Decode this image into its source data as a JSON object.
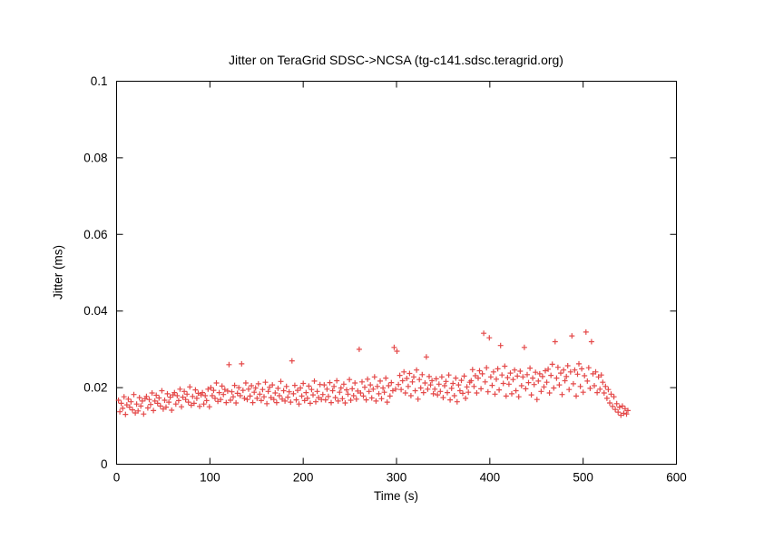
{
  "title": "Jitter on TeraGrid SDSC->NCSA (tg-c141.sdsc.teragrid.org)",
  "colors": {
    "background": "#ffffff",
    "axis": "#000000",
    "text": "#000000",
    "marker": "#e13434"
  },
  "chart_data": {
    "type": "scatter",
    "title": "Jitter on TeraGrid SDSC->NCSA (tg-c141.sdsc.teragrid.org)",
    "xlabel": "Time (s)",
    "ylabel": "Jitter (ms)",
    "xlim": [
      0,
      600
    ],
    "ylim": [
      0,
      0.1
    ],
    "x_ticks": [
      0,
      100,
      200,
      300,
      400,
      500,
      600
    ],
    "x_tick_labels": [
      "0",
      "100",
      "200",
      "300",
      "400",
      "500",
      "600"
    ],
    "y_ticks": [
      0,
      0.02,
      0.04,
      0.06,
      0.08,
      0.1
    ],
    "y_tick_labels": [
      "0",
      "0.02",
      "0.04",
      "0.06",
      "0.08",
      "0.1"
    ],
    "grid": false,
    "legend": "none",
    "marker": "plus",
    "marker_color": "#e13434",
    "series": [
      {
        "name": "jitter",
        "x_start": 2,
        "x_step": 1.5,
        "y_scale": 0.0001,
        "y_scaled": [
          167,
          137,
          159,
          146,
          176,
          130,
          155,
          170,
          149,
          163,
          142,
          182,
          134,
          157,
          139,
          174,
          152,
          165,
          131,
          171,
          177,
          147,
          169,
          156,
          186,
          140,
          165,
          180,
          159,
          173,
          152,
          192,
          144,
          167,
          149,
          184,
          162,
          175,
          141,
          181,
          187,
          157,
          179,
          166,
          196,
          150,
          175,
          190,
          169,
          183,
          162,
          202,
          154,
          177,
          159,
          194,
          172,
          185,
          151,
          181,
          187,
          157,
          179,
          166,
          196,
          150,
          200,
          179,
          193,
          172,
          212,
          164,
          187,
          169,
          204,
          182,
          195,
          161,
          191,
          260,
          167,
          189,
          176,
          206,
          160,
          185,
          200,
          179,
          262,
          193,
          172,
          212,
          169,
          196,
          178,
          205,
          161,
          188,
          199,
          172,
          210,
          183,
          166,
          195,
          176,
          214,
          158,
          190,
          201,
          174,
          207,
          169,
          186,
          161,
          198,
          179,
          216,
          170,
          192,
          165,
          203,
          175,
          189,
          162,
          270,
          184,
          206,
          168,
          193,
          157,
          199,
          178,
          211,
          166,
          187,
          172,
          204,
          159,
          195,
          181,
          217,
          163,
          190,
          174,
          208,
          169,
          182,
          207,
          168,
          196,
          177,
          213,
          161,
          192,
          203,
          174,
          218,
          165,
          188,
          199,
          171,
          209,
          160,
          194,
          183,
          221,
          167,
          197,
          179,
          212,
          170,
          191,
          300,
          186,
          215,
          178,
          201,
          168,
          222,
          190,
          207,
          173,
          196,
          228,
          165,
          203,
          184,
          217,
          171,
          199,
          188,
          225,
          162,
          205,
          178,
          213,
          192,
          305,
          196,
          295,
          208,
          232,
          195,
          218,
          241,
          186,
          224,
          203,
          237,
          179,
          215,
          228,
          192,
          246,
          170,
          221,
          199,
          234,
          187,
          212,
          280,
          196,
          229,
          207,
          218,
          184,
          196,
          223,
          181,
          209,
          190,
          228,
          174,
          205,
          216,
          187,
          233,
          168,
          198,
          211,
          179,
          225,
          163,
          207,
          192,
          219,
          185,
          230,
          172,
          202,
          188,
          214,
          218,
          247,
          203,
          231,
          186,
          225,
          244,
          197,
          236,
          342,
          215,
          252,
          189,
          330,
          228,
          206,
          241,
          183,
          222,
          249,
          194,
          310,
          233,
          211,
          256,
          178,
          226,
          209,
          238,
          184,
          221,
          246,
          192,
          230,
          176,
          243,
          205,
          228,
          305,
          197,
          234,
          213,
          251,
          181,
          225,
          208,
          240,
          169,
          217,
          236,
          190,
          229,
          202,
          244,
          214,
          248,
          186,
          232,
          261,
          199,
          320,
          225,
          253,
          207,
          238,
          182,
          246,
          218,
          229,
          257,
          195,
          241,
          335,
          210,
          246,
          178,
          235,
          262,
          203,
          249,
          188,
          231,
          345,
          217,
          252,
          198,
          320,
          236,
          205,
          241,
          187,
          228,
          196,
          233,
          214,
          186,
          203,
          172,
          195,
          160,
          183,
          151,
          176,
          143,
          158,
          136,
          149,
          128,
          152,
          133,
          145,
          131,
          140
        ]
      }
    ]
  }
}
